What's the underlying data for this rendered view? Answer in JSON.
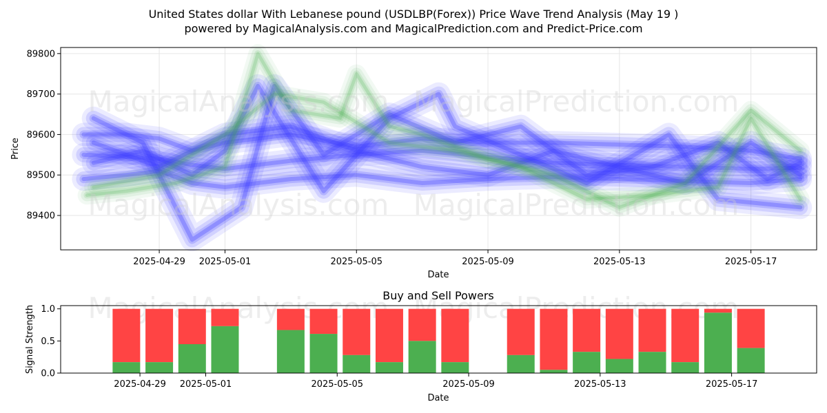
{
  "figure": {
    "title_line1": "United States dollar With Lebanese pound (USDLBP(Forex)) Price Wave Trend Analysis (May 19 )",
    "title_line2": "powered by MagicalAnalysis.com and MagicalPrediction.com and Predict-Price.com",
    "watermarks": [
      "MagicalAnalysis.com",
      "MagicalPrediction.com"
    ]
  },
  "chart_data": [
    {
      "type": "line",
      "title": "",
      "xlabel": "Date",
      "ylabel": "Price",
      "x_ticks": [
        "2025-04-29",
        "2025-05-01",
        "2025-05-05",
        "2025-05-09",
        "2025-05-13",
        "2025-05-17"
      ],
      "y_ticks": [
        89400,
        89500,
        89600,
        89700,
        89800
      ],
      "xlim": [
        "2025-04-26",
        "2025-05-19"
      ],
      "ylim": [
        89315,
        89815
      ],
      "grid": true,
      "colors": {
        "blue": "#3a3aff",
        "green": "#4caf50"
      },
      "series": [
        {
          "color": "blue",
          "x": [
            "2025-04-26.7",
            "2025-04-28",
            "2025-04-29",
            "2025-04-30",
            "2025-05-01",
            "2025-05-03",
            "2025-05-05",
            "2025-05-07",
            "2025-05-09",
            "2025-05-11",
            "2025-05-13",
            "2025-05-15",
            "2025-05-17",
            "2025-05-18.5"
          ],
          "y": [
            89550,
            89545,
            89540,
            89525,
            89515,
            89535,
            89550,
            89560,
            89545,
            89530,
            89525,
            89520,
            89515,
            89518
          ]
        },
        {
          "color": "blue",
          "x": [
            "2025-04-26.7",
            "2025-04-28",
            "2025-04-29",
            "2025-04-30",
            "2025-05-01",
            "2025-05-03",
            "2025-05-05",
            "2025-05-07",
            "2025-05-09",
            "2025-05-11",
            "2025-05-13",
            "2025-05-15",
            "2025-05-17",
            "2025-05-18.5"
          ],
          "y": [
            89600,
            89600,
            89590,
            89560,
            89580,
            89600,
            89570,
            89590,
            89580,
            89580,
            89575,
            89570,
            89560,
            89540
          ]
        },
        {
          "color": "blue",
          "x": [
            "2025-04-26.7",
            "2025-04-28",
            "2025-04-29",
            "2025-04-30",
            "2025-05-01",
            "2025-05-03",
            "2025-05-05",
            "2025-05-07",
            "2025-05-09",
            "2025-05-11",
            "2025-05-13",
            "2025-05-15",
            "2025-05-17",
            "2025-05-18.5"
          ],
          "y": [
            89490,
            89500,
            89510,
            89480,
            89470,
            89490,
            89500,
            89480,
            89490,
            89495,
            89490,
            89485,
            89480,
            89490
          ]
        },
        {
          "color": "blue",
          "x": [
            "2025-04-27",
            "2025-04-28.5",
            "2025-04-30",
            "2025-05-01.5",
            "2025-05-02.5",
            "2025-05-04",
            "2025-05-06",
            "2025-05-08",
            "2025-05-10",
            "2025-05-12",
            "2025-05-14",
            "2025-05-16",
            "2025-05-17.5",
            "2025-05-18.5"
          ],
          "y": [
            89640,
            89580,
            89340,
            89420,
            89720,
            89550,
            89650,
            89580,
            89620,
            89500,
            89520,
            89580,
            89490,
            89530
          ]
        },
        {
          "color": "blue",
          "x": [
            "2025-04-27",
            "2025-04-28.5",
            "2025-04-30",
            "2025-05-01",
            "2025-05-02",
            "2025-05-04",
            "2025-05-06",
            "2025-05-07.5",
            "2025-05-08",
            "2025-05-10",
            "2025-05-12",
            "2025-05-14.5",
            "2025-05-16",
            "2025-05-18.5"
          ],
          "y": [
            89530,
            89560,
            89500,
            89560,
            89720,
            89460,
            89640,
            89700,
            89620,
            89550,
            89480,
            89600,
            89440,
            89420
          ]
        },
        {
          "color": "blue",
          "x": [
            "2025-04-27",
            "2025-04-29",
            "2025-05-01",
            "2025-05-03",
            "2025-05-05",
            "2025-05-07",
            "2025-05-09",
            "2025-05-11",
            "2025-05-13",
            "2025-05-15",
            "2025-05-17",
            "2025-05-18.5"
          ],
          "y": [
            89580,
            89520,
            89600,
            89620,
            89560,
            89520,
            89500,
            89560,
            89520,
            89480,
            89580,
            89500
          ]
        },
        {
          "color": "green",
          "x": [
            "2025-04-26.8",
            "2025-04-28",
            "2025-04-29.5",
            "2025-05-01",
            "2025-05-02",
            "2025-05-03",
            "2025-05-04.5",
            "2025-05-05",
            "2025-05-06",
            "2025-05-07",
            "2025-05-09",
            "2025-05-11",
            "2025-05-13",
            "2025-05-15",
            "2025-05-17",
            "2025-05-18.5"
          ],
          "y": [
            89450,
            89460,
            89480,
            89520,
            89800,
            89660,
            89640,
            89750,
            89620,
            89600,
            89540,
            89500,
            89420,
            89480,
            89660,
            89560
          ]
        },
        {
          "color": "green",
          "x": [
            "2025-04-27",
            "2025-04-29",
            "2025-05-01",
            "2025-05-02.5",
            "2025-05-04",
            "2025-05-06",
            "2025-05-08",
            "2025-05-10",
            "2025-05-12",
            "2025-05-14",
            "2025-05-16",
            "2025-05-17",
            "2025-05-18.5"
          ],
          "y": [
            89470,
            89500,
            89600,
            89700,
            89680,
            89580,
            89560,
            89520,
            89440,
            89450,
            89470,
            89640,
            89440
          ]
        }
      ]
    },
    {
      "type": "bar",
      "title": "Buy and Sell Powers",
      "xlabel": "Date",
      "ylabel": "Signal Strength",
      "x_ticks": [
        "2025-04-29",
        "2025-05-01",
        "2025-05-05",
        "2025-05-09",
        "2025-05-13",
        "2025-05-17"
      ],
      "y_ticks": [
        "0.0",
        "0.5",
        "1.0"
      ],
      "ylim": [
        0,
        1.05
      ],
      "colors": {
        "buy": "#4caf50",
        "sell": "#ff4444"
      },
      "series": [
        {
          "name": "",
          "color": "buy"
        },
        {
          "name": "",
          "color": "sell"
        }
      ],
      "categories": [
        "2025-04-28",
        "2025-04-29",
        "2025-04-30",
        "2025-05-01",
        "2025-05-03",
        "2025-05-04",
        "2025-05-05",
        "2025-05-06",
        "2025-05-07",
        "2025-05-08",
        "2025-05-10",
        "2025-05-11",
        "2025-05-12",
        "2025-05-13",
        "2025-05-14",
        "2025-05-15",
        "2025-05-16",
        "2025-05-17"
      ],
      "buy": [
        0.17,
        0.17,
        0.45,
        0.73,
        0.67,
        0.61,
        0.28,
        0.17,
        0.5,
        0.17,
        0.28,
        0.05,
        0.33,
        0.22,
        0.33,
        0.17,
        0.94,
        0.39
      ],
      "total": 1.0
    }
  ]
}
